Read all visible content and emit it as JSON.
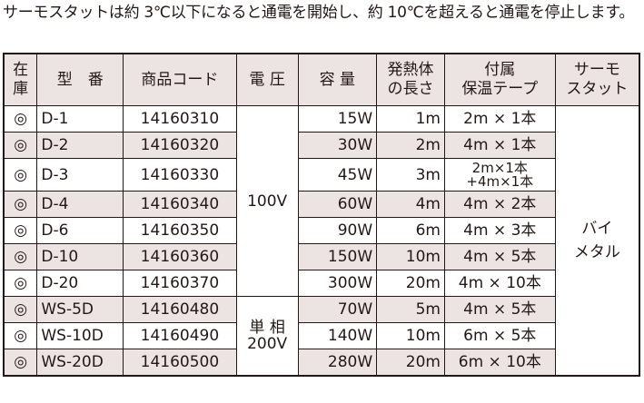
{
  "intro": "サーモスタットは約 3℃以下になると通電を開始し、約 10℃を超えると通電を停止します。",
  "headers": [
    "在庫",
    "型　番",
    "商品コード",
    "電 圧",
    "容 量",
    "発熱体の長さ",
    "付属保温テープ",
    "サーモスタット"
  ],
  "header_lines": {
    "stock": [
      "在",
      "庫"
    ],
    "heat": [
      "発熱体",
      "の長さ"
    ],
    "tape": [
      "付属",
      "保温テープ"
    ],
    "thermo": [
      "サーモ",
      "スタット"
    ]
  },
  "voltage_100": "100V",
  "voltage_200": [
    "単 相",
    "200V"
  ],
  "thermostat": [
    "バイ",
    "メタル"
  ],
  "rows": [
    {
      "stock": "◎",
      "model": "D-1",
      "code": "14160310",
      "capacity": "15W",
      "length": "1m",
      "tape": "2m × 1本"
    },
    {
      "stock": "◎",
      "model": "D-2",
      "code": "14160320",
      "capacity": "30W",
      "length": "2m",
      "tape": "4m × 1本"
    },
    {
      "stock": "◎",
      "model": "D-3",
      "code": "14160330",
      "capacity": "45W",
      "length": "3m",
      "tape": "2m×1本",
      "tape2": "+4m×1本"
    },
    {
      "stock": "◎",
      "model": "D-4",
      "code": "14160340",
      "capacity": "60W",
      "length": "4m",
      "tape": "4m × 2本"
    },
    {
      "stock": "◎",
      "model": "D-6",
      "code": "14160350",
      "capacity": "90W",
      "length": "6m",
      "tape": "4m × 3本"
    },
    {
      "stock": "◎",
      "model": "D-10",
      "code": "14160360",
      "capacity": "150W",
      "length": "10m",
      "tape": "4m × 5本"
    },
    {
      "stock": "◎",
      "model": "D-20",
      "code": "14160370",
      "capacity": "300W",
      "length": "20m",
      "tape": "4m × 10本"
    },
    {
      "stock": "◎",
      "model": "WS-5D",
      "code": "14160480",
      "capacity": "70W",
      "length": "5m",
      "tape": "4m × 5本"
    },
    {
      "stock": "◎",
      "model": "WS-10D",
      "code": "14160490",
      "capacity": "140W",
      "length": "10m",
      "tape": "6m × 5本"
    },
    {
      "stock": "◎",
      "model": "WS-20D",
      "code": "14160500",
      "capacity": "280W",
      "length": "20m",
      "tape": "6m × 10本"
    }
  ]
}
